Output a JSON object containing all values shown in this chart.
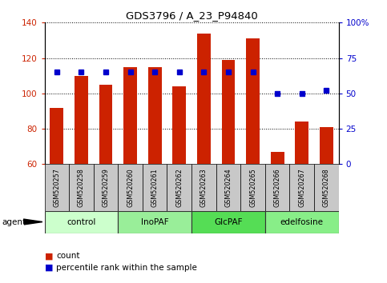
{
  "title": "GDS3796 / A_23_P94840",
  "samples": [
    "GSM520257",
    "GSM520258",
    "GSM520259",
    "GSM520260",
    "GSM520261",
    "GSM520262",
    "GSM520263",
    "GSM520264",
    "GSM520265",
    "GSM520266",
    "GSM520267",
    "GSM520268"
  ],
  "counts": [
    92,
    110,
    105,
    115,
    115,
    104,
    134,
    119,
    131,
    67,
    84,
    81
  ],
  "percentiles": [
    65,
    65,
    65,
    65,
    65,
    65,
    65,
    65,
    65,
    50,
    50,
    52
  ],
  "bar_color": "#cc2200",
  "dot_color": "#0000cc",
  "ylim_left": [
    60,
    140
  ],
  "ylim_right": [
    0,
    100
  ],
  "yticks_left": [
    60,
    80,
    100,
    120,
    140
  ],
  "yticks_right": [
    0,
    25,
    50,
    75,
    100
  ],
  "yticklabels_right": [
    "0",
    "25",
    "50",
    "75",
    "100%"
  ],
  "groups": [
    {
      "label": "control",
      "indices": [
        0,
        1,
        2
      ],
      "color": "#ccffcc"
    },
    {
      "label": "InoPAF",
      "indices": [
        3,
        4,
        5
      ],
      "color": "#99ee99"
    },
    {
      "label": "GlcPAF",
      "indices": [
        6,
        7,
        8
      ],
      "color": "#55dd55"
    },
    {
      "label": "edelfosine",
      "indices": [
        9,
        10,
        11
      ],
      "color": "#88ee88"
    }
  ],
  "bg_sample_row": "#c8c8c8",
  "bar_width": 0.55
}
